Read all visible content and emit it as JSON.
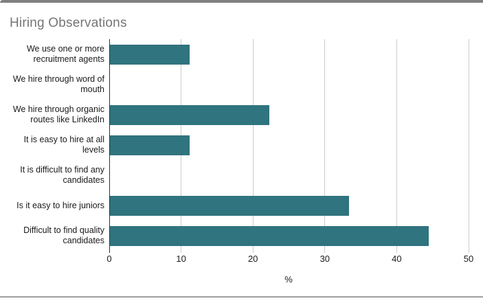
{
  "chart_data": {
    "type": "bar",
    "orientation": "horizontal",
    "title": "Hiring Observations",
    "categories": [
      "We use one or more recruitment agents",
      "We hire through word of mouth",
      "We hire through organic routes like LinkedIn",
      "It is easy to hire at all levels",
      "It is difficult to find any candidates",
      "Is it easy to hire juniors",
      "Difficult to find quality candidates"
    ],
    "values": [
      11.1,
      0,
      22.2,
      11.1,
      0,
      33.3,
      44.4
    ],
    "xlabel": "%",
    "x_ticks": [
      0,
      10,
      20,
      30,
      40,
      50
    ],
    "xlim": [
      0,
      50
    ],
    "grid": true,
    "legend": "none",
    "bar_color": "#2f747e",
    "title_color": "#757575"
  }
}
